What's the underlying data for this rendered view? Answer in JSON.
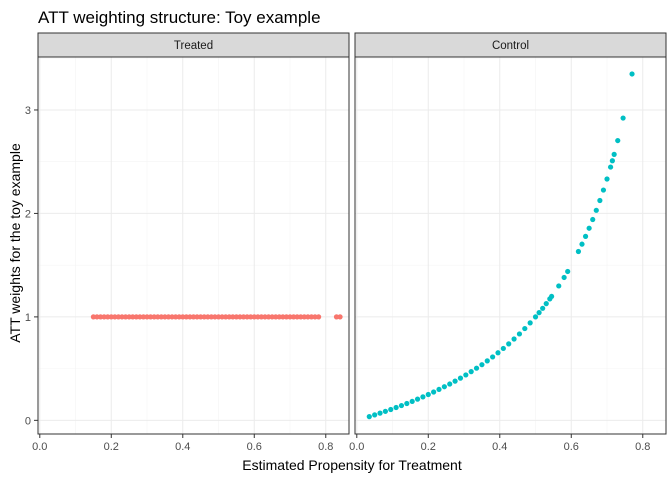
{
  "chart_data": {
    "type": "scatter",
    "title": "ATT weighting structure: Toy example",
    "xlabel": "Estimated Propensity for Treatment",
    "ylabel": "ATT weights for the toy example",
    "xlim": [
      0.0,
      0.8
    ],
    "ylim": [
      0,
      3
    ],
    "x_ticks": [
      "0.0",
      "0.2",
      "0.4",
      "0.6",
      "0.8"
    ],
    "y_ticks": [
      "0",
      "1",
      "2",
      "3"
    ],
    "x_tick_values": [
      0.0,
      0.2,
      0.4,
      0.6,
      0.8
    ],
    "y_tick_values": [
      0,
      1,
      2,
      3
    ],
    "grid": true,
    "panels": [
      {
        "strip": "Treated",
        "color": "#F8766D",
        "x": [
          0.15,
          0.16,
          0.17,
          0.18,
          0.19,
          0.2,
          0.21,
          0.22,
          0.23,
          0.24,
          0.25,
          0.26,
          0.27,
          0.28,
          0.29,
          0.3,
          0.31,
          0.32,
          0.33,
          0.34,
          0.35,
          0.36,
          0.37,
          0.38,
          0.39,
          0.4,
          0.41,
          0.42,
          0.43,
          0.44,
          0.45,
          0.46,
          0.47,
          0.48,
          0.49,
          0.5,
          0.51,
          0.52,
          0.53,
          0.54,
          0.55,
          0.56,
          0.57,
          0.58,
          0.59,
          0.6,
          0.61,
          0.62,
          0.63,
          0.64,
          0.65,
          0.66,
          0.67,
          0.68,
          0.69,
          0.7,
          0.71,
          0.72,
          0.73,
          0.74,
          0.75,
          0.76,
          0.77,
          0.78,
          0.83,
          0.84
        ],
        "y": [
          1,
          1,
          1,
          1,
          1,
          1,
          1,
          1,
          1,
          1,
          1,
          1,
          1,
          1,
          1,
          1,
          1,
          1,
          1,
          1,
          1,
          1,
          1,
          1,
          1,
          1,
          1,
          1,
          1,
          1,
          1,
          1,
          1,
          1,
          1,
          1,
          1,
          1,
          1,
          1,
          1,
          1,
          1,
          1,
          1,
          1,
          1,
          1,
          1,
          1,
          1,
          1,
          1,
          1,
          1,
          1,
          1,
          1,
          1,
          1,
          1,
          1,
          1,
          1,
          1,
          1
        ]
      },
      {
        "strip": "Control",
        "color": "#00BFC4",
        "x": [
          0.035,
          0.05,
          0.065,
          0.08,
          0.095,
          0.11,
          0.125,
          0.14,
          0.155,
          0.17,
          0.185,
          0.2,
          0.215,
          0.23,
          0.245,
          0.26,
          0.275,
          0.29,
          0.305,
          0.32,
          0.335,
          0.35,
          0.365,
          0.38,
          0.395,
          0.41,
          0.425,
          0.44,
          0.455,
          0.47,
          0.485,
          0.5,
          0.51,
          0.52,
          0.53,
          0.54,
          0.545,
          0.565,
          0.58,
          0.59,
          0.62,
          0.63,
          0.64,
          0.65,
          0.66,
          0.67,
          0.68,
          0.69,
          0.7,
          0.71,
          0.715,
          0.72,
          0.73,
          0.745,
          0.77
        ],
        "y": [
          0.036,
          0.053,
          0.07,
          0.087,
          0.105,
          0.124,
          0.143,
          0.163,
          0.183,
          0.205,
          0.227,
          0.25,
          0.274,
          0.299,
          0.325,
          0.351,
          0.379,
          0.408,
          0.439,
          0.471,
          0.504,
          0.538,
          0.575,
          0.613,
          0.653,
          0.695,
          0.739,
          0.786,
          0.835,
          0.887,
          0.942,
          1.0,
          1.041,
          1.083,
          1.128,
          1.174,
          1.198,
          1.299,
          1.381,
          1.439,
          1.632,
          1.703,
          1.778,
          1.857,
          1.941,
          2.03,
          2.125,
          2.226,
          2.333,
          2.448,
          2.509,
          2.571,
          2.704,
          2.922,
          3.348
        ]
      }
    ]
  }
}
